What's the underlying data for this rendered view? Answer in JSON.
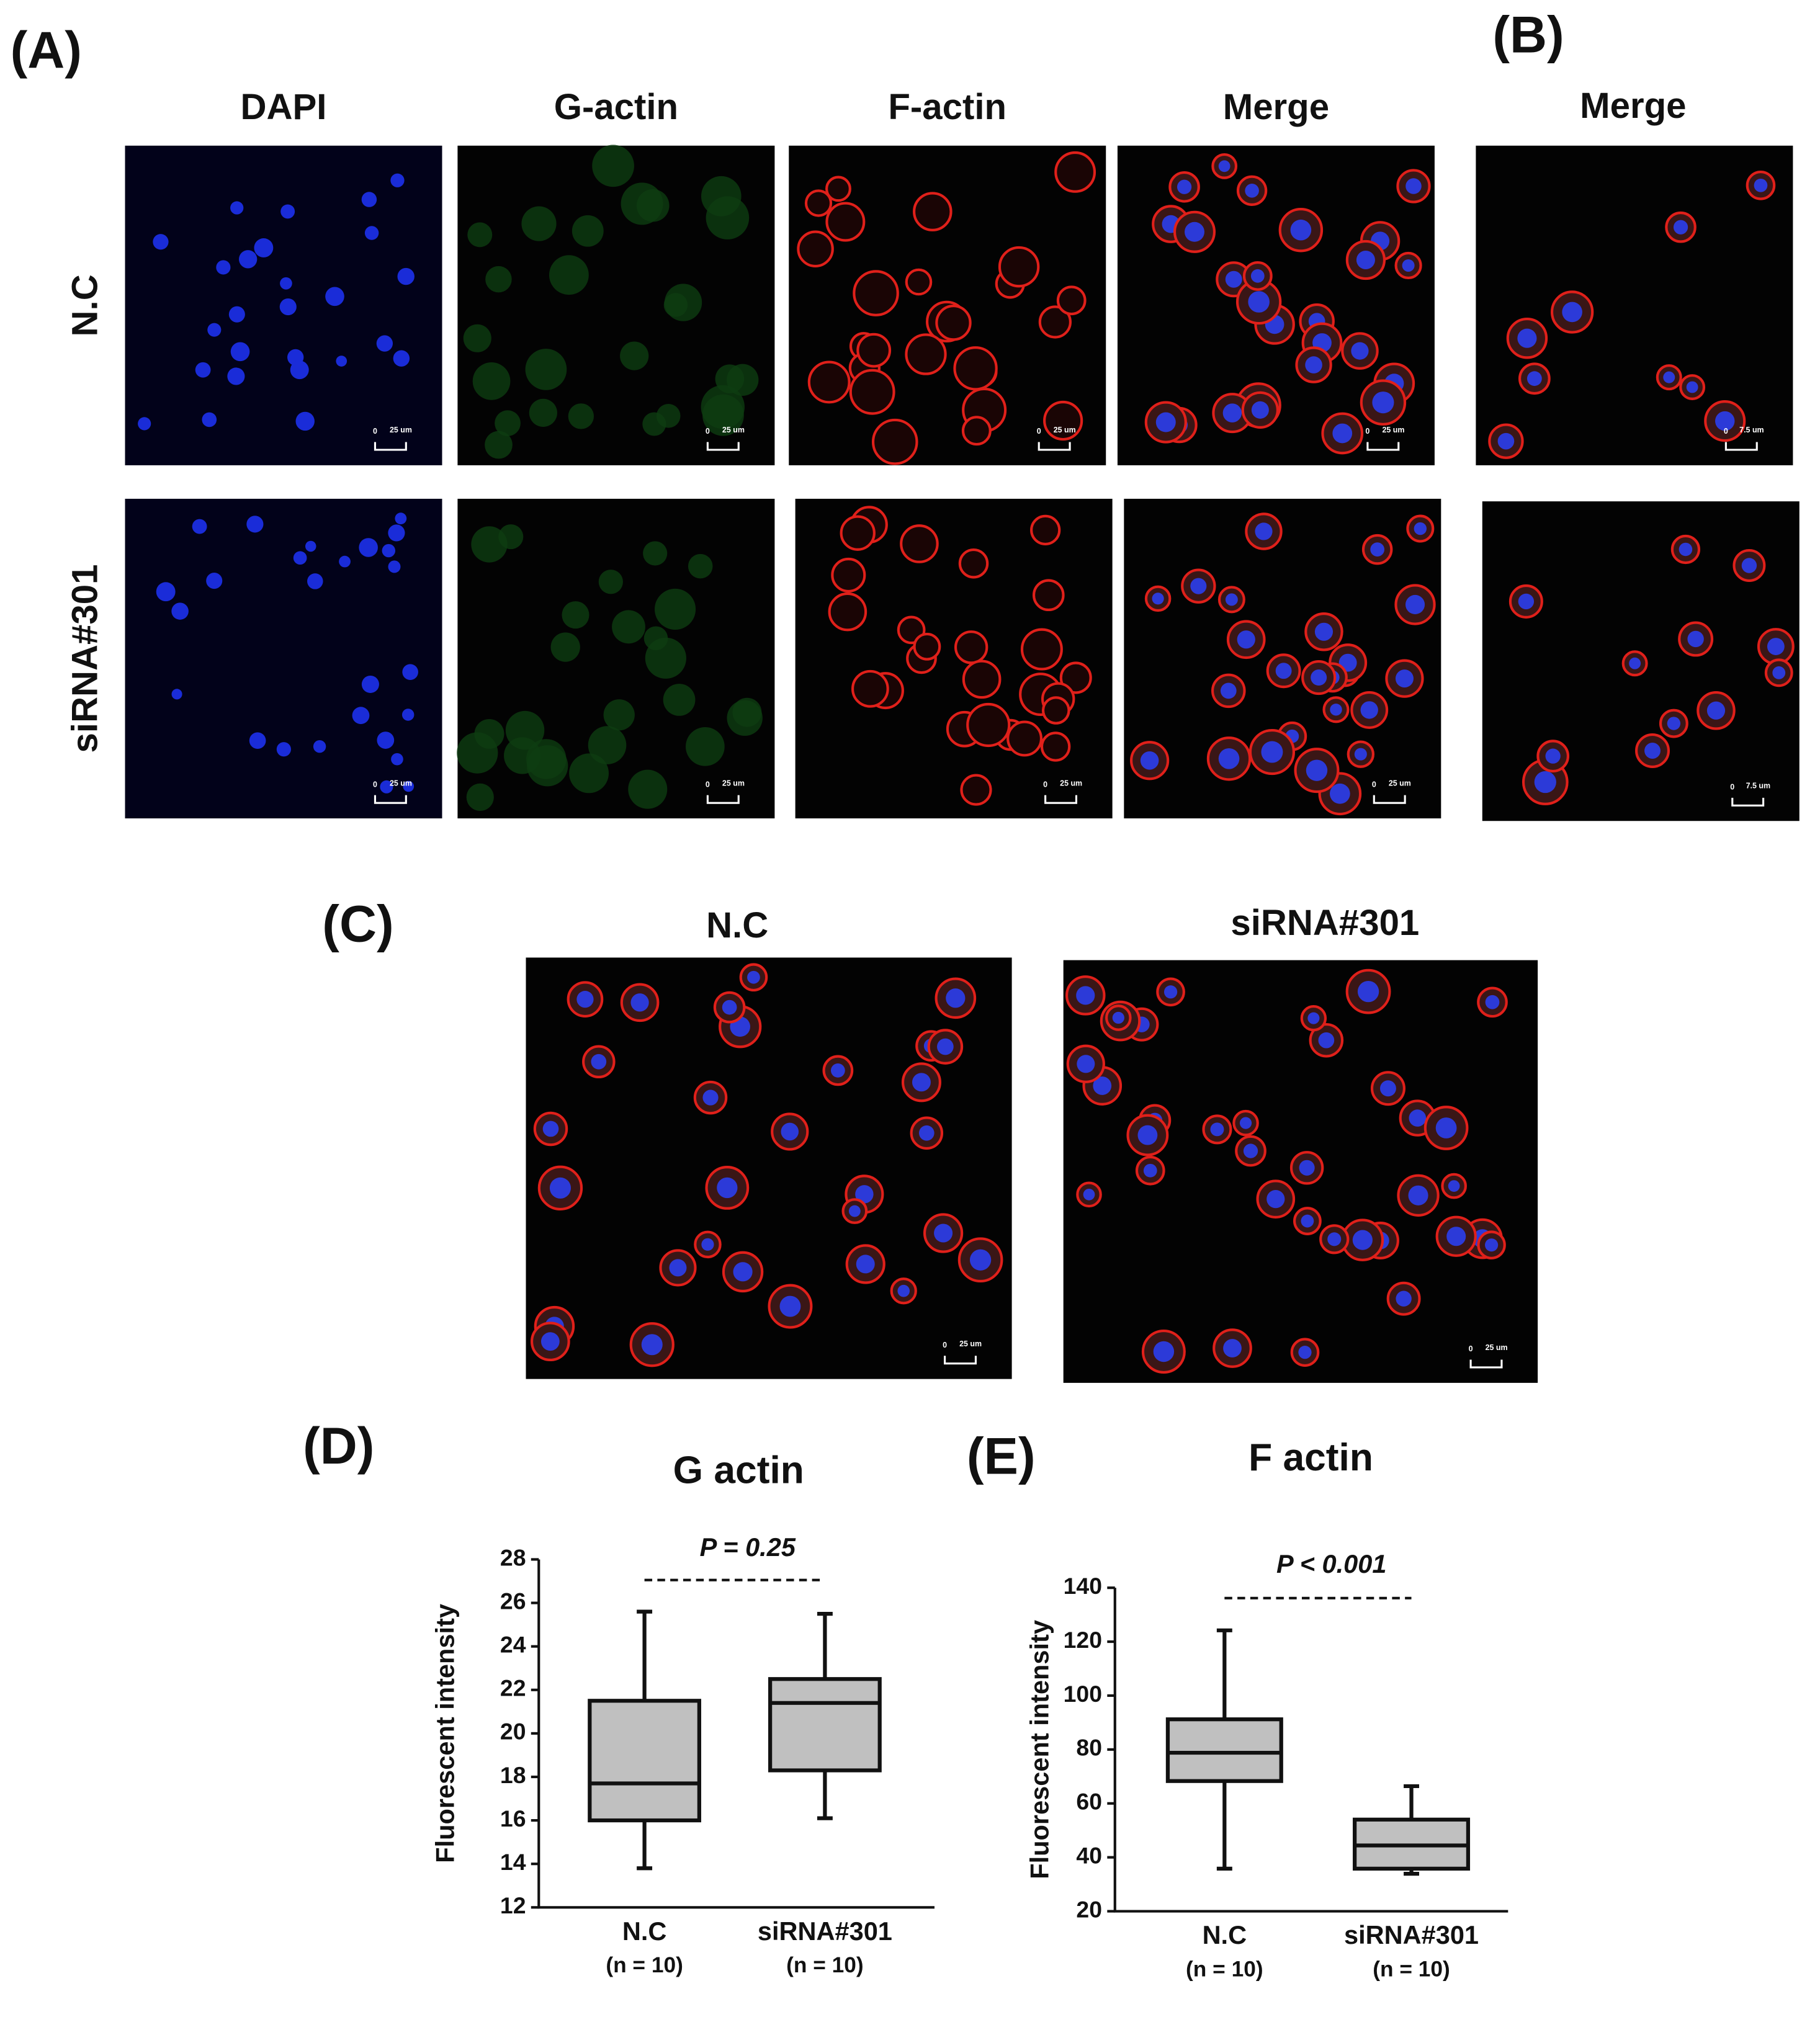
{
  "figure": {
    "panel_a": {
      "label": "(A)",
      "columns": [
        "DAPI",
        "G-actin",
        "F-actin",
        "Merge"
      ],
      "rows": [
        "N.C",
        "siRNA#301"
      ],
      "scale_zero": "0",
      "scale_text": "25 um"
    },
    "panel_b": {
      "label": "(B)",
      "column": "Merge",
      "scale_zero": "0",
      "scale_text": "7.5 um"
    },
    "panel_c": {
      "label": "(C)",
      "columns": [
        "N.C",
        "siRNA#301"
      ],
      "scale_zero": "0",
      "scale_text": "25 um"
    }
  },
  "chart_data": [
    {
      "type": "box",
      "panel_label": "(D)",
      "title": "G actin",
      "y_label": "Fluorescent intensity",
      "annotation": "P = 0.25",
      "categories": [
        "N.C",
        "siRNA#301"
      ],
      "sublabels": [
        "(n = 10)",
        "(n = 10)"
      ],
      "whislo": [
        13.8,
        16.1
      ],
      "q1": [
        16.0,
        18.3
      ],
      "median": [
        17.7,
        21.4
      ],
      "q3": [
        21.5,
        22.5
      ],
      "whishi": [
        25.6,
        25.5
      ],
      "color": "#c0c0c0",
      "ylim": [
        12,
        28
      ],
      "yticks": [
        12,
        14,
        16,
        18,
        20,
        22,
        24,
        26,
        28
      ]
    },
    {
      "type": "box",
      "panel_label": "(E)",
      "title": "F actin",
      "y_label": "Fluorescent intensity",
      "annotation": "P < 0.001",
      "categories": [
        "N.C",
        "siRNA#301"
      ],
      "sublabels": [
        "(n = 10)",
        "(n = 10)"
      ],
      "whislo": [
        35.8,
        33.9
      ],
      "q1": [
        68.3,
        35.8
      ],
      "median": [
        78.8,
        44.4
      ],
      "q3": [
        91.2,
        54.0
      ],
      "whishi": [
        124.2,
        66.4
      ],
      "color": "#c0c0c0",
      "ylim": [
        20,
        140
      ],
      "yticks": [
        20,
        40,
        60,
        80,
        100,
        120,
        140
      ]
    }
  ]
}
